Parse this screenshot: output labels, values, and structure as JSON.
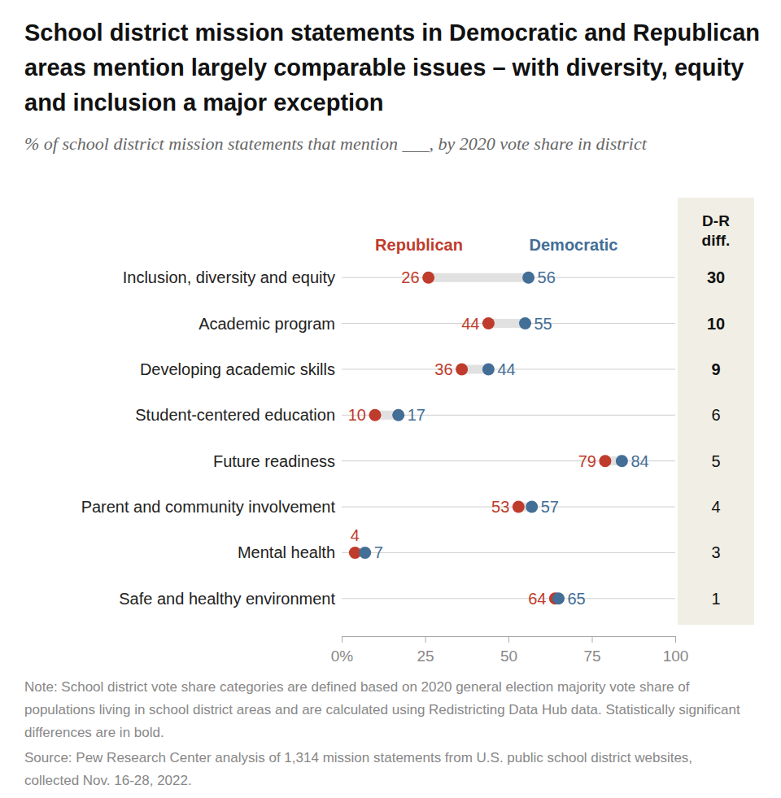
{
  "chart_data": {
    "type": "dot",
    "orientation": "horizontal",
    "title": "School district mission statements in Democratic and Republican areas mention largely comparable issues – with diversity, equity and inclusion a major exception",
    "subtitle": "% of school district mission statements that mention ___, by 2020 vote share in district",
    "categories": [
      "Inclusion, diversity and equity",
      "Academic program",
      "Developing academic skills",
      "Student-centered education",
      "Future readiness",
      "Parent and community involvement",
      "Mental health",
      "Safe and healthy environment"
    ],
    "series": [
      {
        "name": "Republican",
        "color": "#bf3b2c",
        "values": [
          26,
          44,
          36,
          10,
          79,
          53,
          4,
          64
        ]
      },
      {
        "name": "Democratic",
        "color": "#436e96",
        "values": [
          56,
          55,
          44,
          17,
          84,
          57,
          7,
          65
        ]
      }
    ],
    "diff": {
      "title": "D-R diff.",
      "values": [
        30,
        10,
        9,
        6,
        5,
        4,
        3,
        1
      ],
      "significant": [
        true,
        true,
        true,
        false,
        false,
        false,
        false,
        false
      ]
    },
    "xlim": [
      0,
      100
    ],
    "xticks": [
      {
        "value": 0,
        "label": "0%"
      },
      25,
      50,
      75,
      100
    ],
    "data_labels": true,
    "note": "Note: School district vote share categories are defined based on 2020 general election majority vote share of populations living in school district areas and are calculated using Redistricting Data Hub data. Statistically significant differences are in bold.",
    "source": "Source: Pew Research Center analysis of 1,314 mission statements from U.S. public school district websites, collected Nov. 16-28, 2022."
  }
}
